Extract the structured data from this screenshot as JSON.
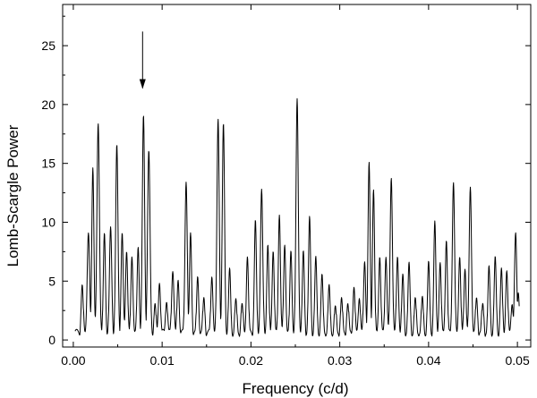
{
  "chart_data": {
    "type": "line",
    "title": "",
    "xlabel": "Frequency (c/d)",
    "ylabel": "Lomb-Scargle Power",
    "xlim": [
      -0.0012,
      0.0515
    ],
    "ylim": [
      -0.6,
      28.5
    ],
    "x_ticks": [
      0.0,
      0.01,
      0.02,
      0.03,
      0.04,
      0.05
    ],
    "x_tick_labels": [
      "0.00",
      "0.01",
      "0.02",
      "0.03",
      "0.04",
      "0.05"
    ],
    "y_ticks": [
      0,
      5,
      10,
      15,
      20,
      25
    ],
    "y_tick_labels": [
      "0",
      "5",
      "10",
      "15",
      "20",
      "25"
    ],
    "grid": false,
    "series": [
      {
        "color": "#000000",
        "peaks": [
          [
            0.001,
            4.6,
            0.00012
          ],
          [
            0.0017,
            9.0,
            0.00014
          ],
          [
            0.0022,
            14.6,
            0.00012
          ],
          [
            0.0028,
            18.3,
            0.00014
          ],
          [
            0.0035,
            9.0,
            0.00012
          ],
          [
            0.0042,
            9.5,
            0.00013
          ],
          [
            0.0049,
            16.5,
            0.00013
          ],
          [
            0.0055,
            9.0,
            0.00012
          ],
          [
            0.006,
            7.5,
            0.00012
          ],
          [
            0.0066,
            7.0,
            0.00012
          ],
          [
            0.0073,
            7.8,
            0.00012
          ],
          [
            0.0079,
            19.0,
            0.00013
          ],
          [
            0.0085,
            16.0,
            0.00014
          ],
          [
            0.0092,
            3.0,
            0.00012
          ],
          [
            0.0097,
            4.8,
            0.00012
          ],
          [
            0.0105,
            3.2,
            0.00012
          ],
          [
            0.0112,
            5.8,
            0.00013
          ],
          [
            0.0118,
            5.0,
            0.00012
          ],
          [
            0.0127,
            13.4,
            0.00013
          ],
          [
            0.0132,
            9.0,
            0.00012
          ],
          [
            0.014,
            5.3,
            0.00012
          ],
          [
            0.0147,
            3.5,
            0.00012
          ],
          [
            0.0156,
            5.3,
            0.00012
          ],
          [
            0.0163,
            18.7,
            0.00013
          ],
          [
            0.0169,
            18.3,
            0.00013
          ],
          [
            0.0176,
            6.0,
            0.00012
          ],
          [
            0.0183,
            3.4,
            0.00012
          ],
          [
            0.019,
            3.0,
            0.00012
          ],
          [
            0.0196,
            7.0,
            0.00012
          ],
          [
            0.0205,
            10.1,
            0.00012
          ],
          [
            0.0212,
            12.7,
            0.00013
          ],
          [
            0.0219,
            8.0,
            0.00012
          ],
          [
            0.0225,
            7.5,
            0.00012
          ],
          [
            0.0232,
            10.6,
            0.00012
          ],
          [
            0.0238,
            8.0,
            0.00012
          ],
          [
            0.0245,
            7.5,
            0.00012
          ],
          [
            0.0252,
            20.4,
            0.00013
          ],
          [
            0.0259,
            7.5,
            0.00012
          ],
          [
            0.0266,
            10.4,
            0.00012
          ],
          [
            0.0273,
            7.0,
            0.00012
          ],
          [
            0.028,
            5.5,
            0.00012
          ],
          [
            0.0288,
            4.6,
            0.00012
          ],
          [
            0.0295,
            2.8,
            0.00012
          ],
          [
            0.0302,
            3.5,
            0.00012
          ],
          [
            0.0309,
            3.0,
            0.00012
          ],
          [
            0.0316,
            4.4,
            0.00012
          ],
          [
            0.0322,
            3.5,
            0.00012
          ],
          [
            0.0328,
            6.6,
            0.00012
          ],
          [
            0.0333,
            15.0,
            0.00012
          ],
          [
            0.0338,
            12.7,
            0.00012
          ],
          [
            0.0345,
            7.0,
            0.00012
          ],
          [
            0.0352,
            7.0,
            0.00012
          ],
          [
            0.0358,
            13.7,
            0.00013
          ],
          [
            0.0365,
            7.0,
            0.00012
          ],
          [
            0.0371,
            5.5,
            0.00012
          ],
          [
            0.0378,
            6.5,
            0.00012
          ],
          [
            0.0385,
            3.5,
            0.00012
          ],
          [
            0.0393,
            3.6,
            0.00012
          ],
          [
            0.04,
            6.6,
            0.00012
          ],
          [
            0.0407,
            10.0,
            0.00012
          ],
          [
            0.0413,
            6.5,
            0.00012
          ],
          [
            0.042,
            8.4,
            0.00012
          ],
          [
            0.0428,
            13.3,
            0.00013
          ],
          [
            0.0435,
            7.0,
            0.00012
          ],
          [
            0.0441,
            6.0,
            0.00012
          ],
          [
            0.0447,
            12.9,
            0.00013
          ],
          [
            0.0454,
            3.5,
            0.00012
          ],
          [
            0.0461,
            3.0,
            0.00012
          ],
          [
            0.0468,
            6.2,
            0.00012
          ],
          [
            0.0475,
            7.0,
            0.00012
          ],
          [
            0.0482,
            6.0,
            0.00012
          ],
          [
            0.0488,
            5.8,
            0.00012
          ],
          [
            0.0494,
            3.0,
            0.00012
          ],
          [
            0.0498,
            9.0,
            0.00013
          ],
          [
            0.0501,
            4.0,
            0.00012
          ]
        ]
      }
    ],
    "annotations": [
      {
        "type": "arrow",
        "x": 0.0078,
        "y_from": 26.2,
        "y_to": 22.0
      }
    ]
  }
}
